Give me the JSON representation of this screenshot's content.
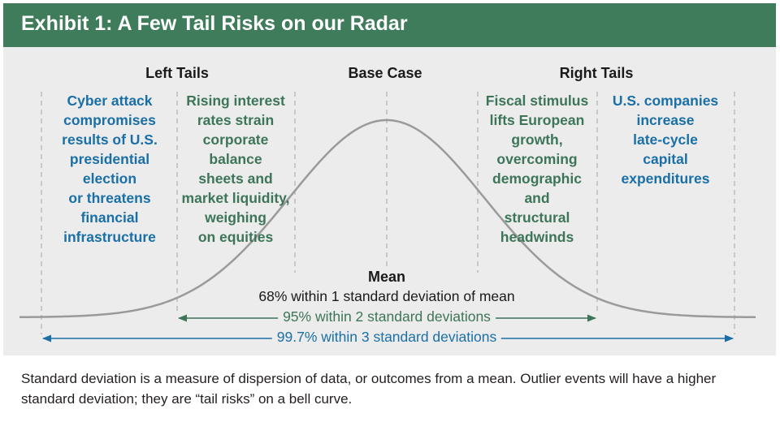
{
  "header": {
    "title": "Exhibit 1: A Few Tail Risks on our Radar"
  },
  "sections": {
    "left_tails": "Left Tails",
    "base_case": "Base Case",
    "right_tails": "Right Tails"
  },
  "risks": {
    "cyber": [
      "Cyber attack",
      "compromises",
      "results of U.S.",
      "presidential",
      "election",
      "or threatens",
      "financial",
      "infrastructure"
    ],
    "interest": [
      "Rising interest",
      "rates strain",
      "corporate",
      "balance",
      "sheets and",
      "market liquidity,",
      "weighing",
      "on equities"
    ],
    "fiscal": [
      "Fiscal stimulus",
      "lifts European",
      "growth,",
      "overcoming",
      "demographic",
      "and",
      "structural",
      "headwinds"
    ],
    "capex": [
      "U.S. companies",
      "increase",
      "late-cycle",
      "capital",
      "expenditures"
    ]
  },
  "curve": {
    "mean_label": "Mean",
    "sd1_label": "68% within 1 standard deviation of mean",
    "sd2_label": "95% within 2 standard deviations",
    "sd3_label": "99.7% within 3 standard deviations"
  },
  "footer": {
    "text": "Standard deviation is a measure of dispersion of data, or outcomes from a mean. Outlier events will have a higher standard deviation; they are “tail risks” on a bell curve."
  },
  "colors": {
    "header_bg": "#3f7c5c",
    "green_text": "#3d7558",
    "blue_text": "#1a6fa6",
    "chart_bg": "#ececec",
    "curve": "#9a9a9a"
  }
}
